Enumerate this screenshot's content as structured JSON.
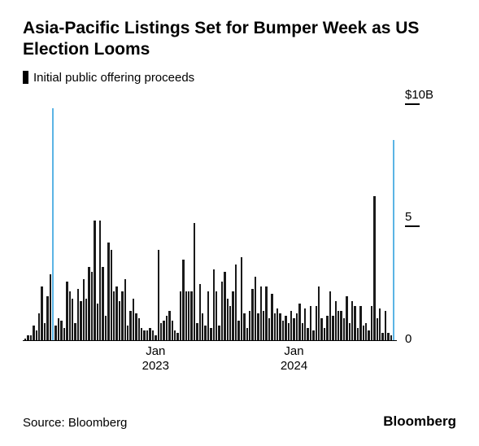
{
  "title": "Asia-Pacific Listings Set for Bumper Week as US Election Looms",
  "legend": {
    "swatch_color": "#000000",
    "label": "Initial public offering proceeds"
  },
  "source": "Source: Bloomberg",
  "brand": "Bloomberg",
  "chart": {
    "type": "bar",
    "background_color": "#ffffff",
    "bar_color": "#1a1a1a",
    "highlight_color": "#5bb4e5",
    "axis_color": "#000000",
    "ylim": [
      0,
      10
    ],
    "y_ticks": [
      {
        "value": 10,
        "label": "$10B"
      },
      {
        "value": 5,
        "label": "5"
      },
      {
        "value": 0,
        "label": "0"
      }
    ],
    "x_ticks": [
      {
        "frac": 0.355,
        "label_top": "Jan",
        "label_bottom": "2023"
      },
      {
        "frac": 0.725,
        "label_top": "Jan",
        "label_bottom": "2024"
      }
    ],
    "highlight_indices": [
      10,
      133
    ],
    "values": [
      0.05,
      0.2,
      0.2,
      0.6,
      0.4,
      1.1,
      2.2,
      0.7,
      1.8,
      2.7,
      9.5,
      0.6,
      0.9,
      0.8,
      0.5,
      2.4,
      2.0,
      1.7,
      0.7,
      2.1,
      1.6,
      2.5,
      1.7,
      3.0,
      2.8,
      4.9,
      1.5,
      4.9,
      3.0,
      1.0,
      4.0,
      3.7,
      2.0,
      2.2,
      1.6,
      2.0,
      2.5,
      0.6,
      1.2,
      1.7,
      1.1,
      0.9,
      0.5,
      0.4,
      0.4,
      0.5,
      0.4,
      0.2,
      3.7,
      0.7,
      0.8,
      1.0,
      1.2,
      0.8,
      0.4,
      0.3,
      2.0,
      3.3,
      2.0,
      2.0,
      2.0,
      4.8,
      0.7,
      2.3,
      1.1,
      0.6,
      2.0,
      0.5,
      2.9,
      2.0,
      0.6,
      2.4,
      2.8,
      1.7,
      1.4,
      2.0,
      3.1,
      0.8,
      3.4,
      1.1,
      0.5,
      1.2,
      2.1,
      2.6,
      1.1,
      2.2,
      1.2,
      2.2,
      0.9,
      1.9,
      1.1,
      1.3,
      1.1,
      0.8,
      1.0,
      0.7,
      1.2,
      0.9,
      1.1,
      1.5,
      0.7,
      1.3,
      0.5,
      1.4,
      0.4,
      1.4,
      2.2,
      0.9,
      0.5,
      1.0,
      2.0,
      1.0,
      1.6,
      1.2,
      1.2,
      0.9,
      1.8,
      0.7,
      1.6,
      1.4,
      0.5,
      1.4,
      0.6,
      0.7,
      0.4,
      1.4,
      5.9,
      0.9,
      1.3,
      0.3,
      1.2,
      0.3,
      0.2,
      8.2
    ]
  }
}
